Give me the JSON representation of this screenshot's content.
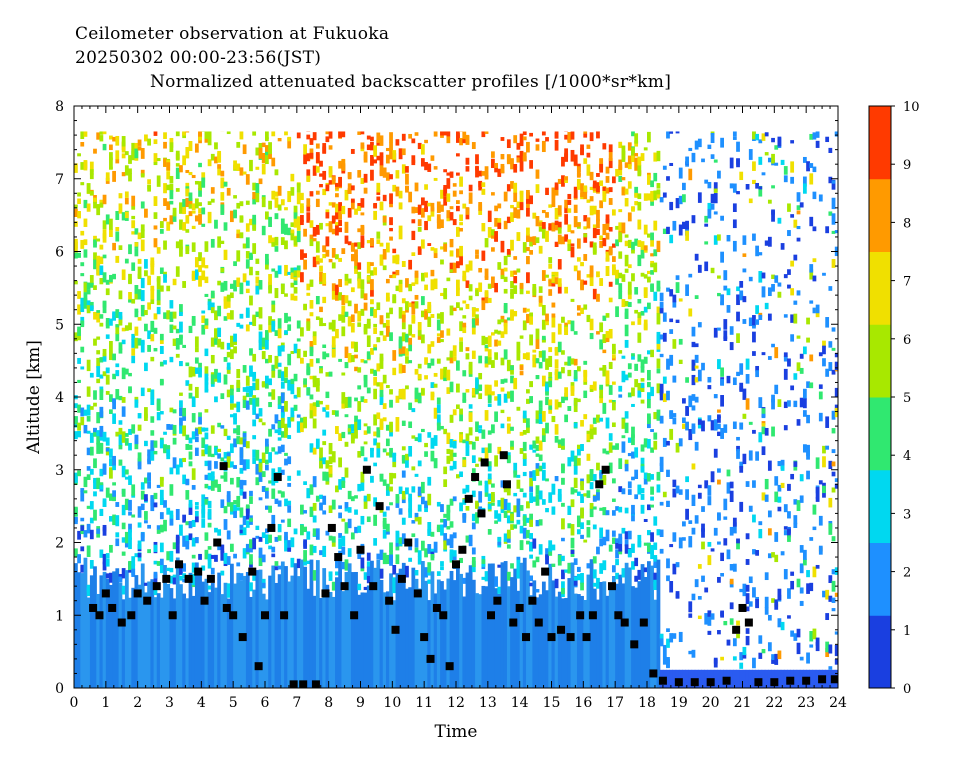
{
  "header": {
    "line1": "Ceilometer observation at Fukuoka",
    "line2": "20250302  00:00-23:56(JST)",
    "line3": "Normalized attenuated backscatter profiles [/1000*sr*km]"
  },
  "chart_data": {
    "type": "heatmap",
    "xlabel": "Time",
    "ylabel": "Altitude [km]",
    "xlim": [
      0,
      24
    ],
    "ylim": [
      0,
      8
    ],
    "x_ticks": [
      "0",
      "1",
      "2",
      "3",
      "4",
      "5",
      "6",
      "7",
      "8",
      "9",
      "10",
      "11",
      "12",
      "13",
      "14",
      "15",
      "16",
      "17",
      "18",
      "19",
      "20",
      "21",
      "22",
      "23",
      "24"
    ],
    "y_ticks": [
      "0",
      "1",
      "2",
      "3",
      "4",
      "5",
      "6",
      "7",
      "8"
    ],
    "colorbar": {
      "min": 0,
      "max": 10,
      "ticks": [
        "0",
        "1",
        "2",
        "3",
        "4",
        "5",
        "6",
        "7",
        "8",
        "9",
        "10"
      ],
      "colors": [
        "#1a3fe0",
        "#1e90ff",
        "#00d8f0",
        "#30e870",
        "#a8e800",
        "#f0e000",
        "#ff9a00",
        "#ff3a00"
      ]
    },
    "data_ceiling_km": 7.65,
    "cloud_base": [
      {
        "x": 0.6,
        "y": 1.1
      },
      {
        "x": 0.8,
        "y": 1.0
      },
      {
        "x": 1.0,
        "y": 1.3
      },
      {
        "x": 1.2,
        "y": 1.1
      },
      {
        "x": 1.5,
        "y": 0.9
      },
      {
        "x": 1.8,
        "y": 1.0
      },
      {
        "x": 2.0,
        "y": 1.3
      },
      {
        "x": 2.3,
        "y": 1.2
      },
      {
        "x": 2.6,
        "y": 1.4
      },
      {
        "x": 2.9,
        "y": 1.5
      },
      {
        "x": 3.1,
        "y": 1.0
      },
      {
        "x": 3.3,
        "y": 1.7
      },
      {
        "x": 3.6,
        "y": 1.5
      },
      {
        "x": 3.9,
        "y": 1.6
      },
      {
        "x": 4.1,
        "y": 1.2
      },
      {
        "x": 4.3,
        "y": 1.5
      },
      {
        "x": 4.5,
        "y": 2.0
      },
      {
        "x": 4.7,
        "y": 3.05
      },
      {
        "x": 4.8,
        "y": 1.1
      },
      {
        "x": 5.0,
        "y": 1.0
      },
      {
        "x": 5.3,
        "y": 0.7
      },
      {
        "x": 5.6,
        "y": 1.6
      },
      {
        "x": 5.8,
        "y": 0.3
      },
      {
        "x": 6.0,
        "y": 1.0
      },
      {
        "x": 6.2,
        "y": 2.2
      },
      {
        "x": 6.4,
        "y": 2.9
      },
      {
        "x": 6.6,
        "y": 1.0
      },
      {
        "x": 6.9,
        "y": 0.05
      },
      {
        "x": 7.2,
        "y": 0.05
      },
      {
        "x": 7.6,
        "y": 0.05
      },
      {
        "x": 7.9,
        "y": 1.3
      },
      {
        "x": 8.1,
        "y": 2.2
      },
      {
        "x": 8.3,
        "y": 1.8
      },
      {
        "x": 8.5,
        "y": 1.4
      },
      {
        "x": 8.8,
        "y": 1.0
      },
      {
        "x": 9.0,
        "y": 1.9
      },
      {
        "x": 9.2,
        "y": 3.0
      },
      {
        "x": 9.4,
        "y": 1.4
      },
      {
        "x": 9.6,
        "y": 2.5
      },
      {
        "x": 9.9,
        "y": 1.2
      },
      {
        "x": 10.1,
        "y": 0.8
      },
      {
        "x": 10.3,
        "y": 1.5
      },
      {
        "x": 10.5,
        "y": 2.0
      },
      {
        "x": 10.8,
        "y": 1.3
      },
      {
        "x": 11.0,
        "y": 0.7
      },
      {
        "x": 11.2,
        "y": 0.4
      },
      {
        "x": 11.4,
        "y": 1.1
      },
      {
        "x": 11.6,
        "y": 1.0
      },
      {
        "x": 11.8,
        "y": 0.3
      },
      {
        "x": 12.0,
        "y": 1.7
      },
      {
        "x": 12.2,
        "y": 1.9
      },
      {
        "x": 12.4,
        "y": 2.6
      },
      {
        "x": 12.6,
        "y": 2.9
      },
      {
        "x": 12.8,
        "y": 2.4
      },
      {
        "x": 12.9,
        "y": 3.1
      },
      {
        "x": 13.1,
        "y": 1.0
      },
      {
        "x": 13.3,
        "y": 1.2
      },
      {
        "x": 13.5,
        "y": 3.2
      },
      {
        "x": 13.6,
        "y": 2.8
      },
      {
        "x": 13.8,
        "y": 0.9
      },
      {
        "x": 14.0,
        "y": 1.1
      },
      {
        "x": 14.2,
        "y": 0.7
      },
      {
        "x": 14.4,
        "y": 1.2
      },
      {
        "x": 14.6,
        "y": 0.9
      },
      {
        "x": 14.8,
        "y": 1.6
      },
      {
        "x": 15.0,
        "y": 0.7
      },
      {
        "x": 15.3,
        "y": 0.8
      },
      {
        "x": 15.6,
        "y": 0.7
      },
      {
        "x": 15.9,
        "y": 1.0
      },
      {
        "x": 16.1,
        "y": 0.7
      },
      {
        "x": 16.3,
        "y": 1.0
      },
      {
        "x": 16.5,
        "y": 2.8
      },
      {
        "x": 16.7,
        "y": 3.0
      },
      {
        "x": 16.9,
        "y": 1.4
      },
      {
        "x": 17.1,
        "y": 1.0
      },
      {
        "x": 17.3,
        "y": 0.9
      },
      {
        "x": 17.6,
        "y": 0.6
      },
      {
        "x": 17.9,
        "y": 0.9
      },
      {
        "x": 18.2,
        "y": 0.2
      },
      {
        "x": 18.5,
        "y": 0.1
      },
      {
        "x": 19.0,
        "y": 0.08
      },
      {
        "x": 19.5,
        "y": 0.08
      },
      {
        "x": 20.0,
        "y": 0.08
      },
      {
        "x": 20.5,
        "y": 0.1
      },
      {
        "x": 20.8,
        "y": 0.8
      },
      {
        "x": 21.0,
        "y": 1.1
      },
      {
        "x": 21.2,
        "y": 0.9
      },
      {
        "x": 21.5,
        "y": 0.08
      },
      {
        "x": 22.0,
        "y": 0.08
      },
      {
        "x": 22.5,
        "y": 0.1
      },
      {
        "x": 23.0,
        "y": 0.1
      },
      {
        "x": 23.5,
        "y": 0.12
      },
      {
        "x": 23.9,
        "y": 0.12
      }
    ]
  }
}
